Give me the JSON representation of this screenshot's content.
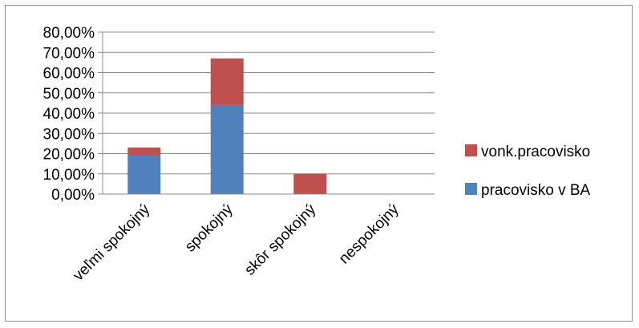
{
  "chart_data": {
    "type": "bar",
    "stacked": true,
    "categories": [
      "veľmi spokojný",
      "spokojný",
      "skôr spokojný",
      "nespokojný"
    ],
    "series": [
      {
        "name": "pracovisko v BA",
        "color": "#4f81bd",
        "values": [
          0.19,
          0.44,
          0.0,
          0.0
        ]
      },
      {
        "name": "vonk.pracovisko",
        "color": "#c0504d",
        "values": [
          0.04,
          0.23,
          0.1,
          0.0
        ]
      }
    ],
    "ylim": [
      0,
      0.8
    ],
    "yticks": [
      "0,00%",
      "10,00%",
      "20,00%",
      "30,00%",
      "40,00%",
      "50,00%",
      "60,00%",
      "70,00%",
      "80,00%"
    ],
    "grid": true,
    "legend_position": "right",
    "legend_order": [
      "vonk.pracovisko",
      "pracovisko v BA"
    ],
    "title": "",
    "xlabel": "",
    "ylabel": ""
  }
}
